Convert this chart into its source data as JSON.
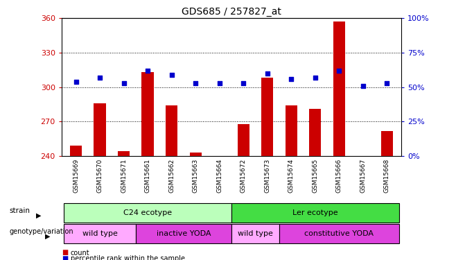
{
  "title": "GDS685 / 257827_at",
  "samples": [
    "GSM15669",
    "GSM15670",
    "GSM15671",
    "GSM15661",
    "GSM15662",
    "GSM15663",
    "GSM15664",
    "GSM15672",
    "GSM15673",
    "GSM15674",
    "GSM15665",
    "GSM15666",
    "GSM15667",
    "GSM15668"
  ],
  "counts": [
    249,
    286,
    244,
    313,
    284,
    243,
    240,
    268,
    308,
    284,
    281,
    357,
    240,
    262
  ],
  "percentile_ranks": [
    54,
    57,
    53,
    62,
    59,
    53,
    53,
    53,
    60,
    56,
    57,
    62,
    51,
    53
  ],
  "ylim_left": [
    240,
    360
  ],
  "ylim_right": [
    0,
    100
  ],
  "yticks_left": [
    240,
    270,
    300,
    330,
    360
  ],
  "yticks_right": [
    0,
    25,
    50,
    75,
    100
  ],
  "bar_color": "#cc0000",
  "dot_color": "#0000cc",
  "strain_row": [
    {
      "label": "C24 ecotype",
      "start": 0,
      "end": 7,
      "color": "#bbffbb"
    },
    {
      "label": "Ler ecotype",
      "start": 7,
      "end": 14,
      "color": "#44dd44"
    }
  ],
  "genotype_row": [
    {
      "label": "wild type",
      "start": 0,
      "end": 3,
      "color": "#ffaaff"
    },
    {
      "label": "inactive YODA",
      "start": 3,
      "end": 7,
      "color": "#dd44dd"
    },
    {
      "label": "wild type",
      "start": 7,
      "end": 9,
      "color": "#ffaaff"
    },
    {
      "label": "constitutive YODA",
      "start": 9,
      "end": 14,
      "color": "#dd44dd"
    }
  ],
  "tick_label_color_left": "#cc0000",
  "tick_label_color_right": "#0000cc",
  "legend_items": [
    {
      "color": "#cc0000",
      "label": "count"
    },
    {
      "color": "#0000cc",
      "label": "percentile rank within the sample"
    }
  ]
}
